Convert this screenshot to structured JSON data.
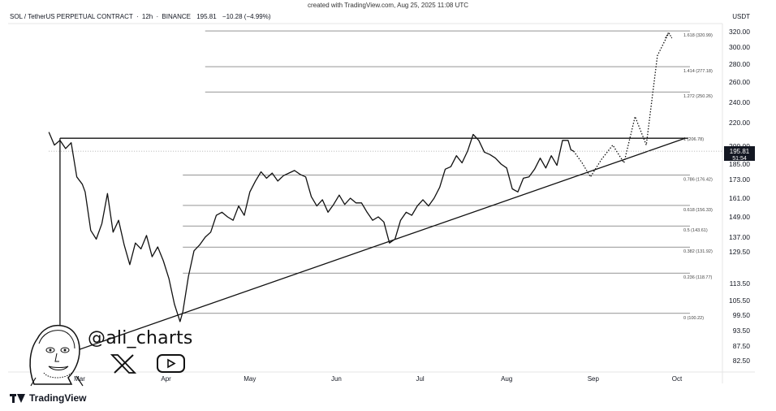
{
  "header": {
    "created": "created with TradingView.com, Aug 25, 2025 11:08 UTC",
    "symbol": "SOL / TetherUS PERPETUAL CONTRACT",
    "interval": "12h",
    "exchange": "BINANCE",
    "last": "195.81",
    "change": "−10.28 (−4.99%)",
    "currency": "USDT"
  },
  "price_badge": {
    "price": "195.81",
    "countdown": "51:54"
  },
  "branding": {
    "handle": "@ali_charts",
    "platform": "TradingView"
  },
  "colors": {
    "line": "#111111",
    "grid": "#d9d9d9",
    "badge": "#131722",
    "badge_text": "#ffffff"
  },
  "chart_data": {
    "type": "line",
    "title": "",
    "xlabel": "",
    "ylabel": "",
    "ylim": [
      80,
      325
    ],
    "grid": false,
    "y_tick_labels": [
      "320.00",
      "300.00",
      "280.00",
      "260.00",
      "240.00",
      "220.00",
      "200.00",
      "185.00",
      "173.00",
      "161.00",
      "149.00",
      "137.00",
      "129.50",
      "113.50",
      "105.50",
      "99.50",
      "93.50",
      "87.50",
      "82.50"
    ],
    "y_tick_values": [
      320,
      300,
      280,
      260,
      240,
      220,
      200,
      185,
      173,
      161,
      149,
      137,
      129.5,
      113.5,
      105.5,
      99.5,
      93.5,
      87.5,
      82.5
    ],
    "x_tick_labels": [
      "Mar",
      "Apr",
      "May",
      "Jun",
      "Jul",
      "Aug",
      "Sep",
      "Oct"
    ],
    "x_tick_dates": [
      "2025-03-01",
      "2025-04-01",
      "2025-05-01",
      "2025-06-01",
      "2025-07-01",
      "2025-08-01",
      "2025-09-01",
      "2025-10-01"
    ],
    "fib_levels": [
      {
        "label": "1.618 (320.99)",
        "value": 320.99
      },
      {
        "label": "1.414 (277.18)",
        "value": 277.18
      },
      {
        "label": "1.272 (250.26)",
        "value": 250.26
      },
      {
        "label": "0.786 (176.42)",
        "value": 176.42
      },
      {
        "label": "0.618 (156.33)",
        "value": 156.33
      },
      {
        "label": "0.5 (143.61)",
        "value": 143.61
      },
      {
        "label": "0.382 (131.92)",
        "value": 131.92
      },
      {
        "label": "0.236 (118.77)",
        "value": 118.77
      },
      {
        "label": "0 (100.22)",
        "value": 100.22
      }
    ],
    "resistance": {
      "label": "1 (206.78)",
      "value": 206.78
    },
    "last_price": 195.81,
    "series": [
      {
        "x": [
          "2025-02-18",
          "2025-02-20",
          "2025-02-22",
          "2025-02-24",
          "2025-02-26",
          "2025-02-28",
          "2025-03-02",
          "2025-03-03",
          "2025-03-05",
          "2025-03-07",
          "2025-03-09",
          "2025-03-11",
          "2025-03-13",
          "2025-03-15",
          "2025-03-17",
          "2025-03-19",
          "2025-03-21",
          "2025-03-23",
          "2025-03-25",
          "2025-03-27",
          "2025-03-29",
          "2025-03-31",
          "2025-04-02",
          "2025-04-04",
          "2025-04-06",
          "2025-04-07",
          "2025-04-09",
          "2025-04-11",
          "2025-04-13",
          "2025-04-15",
          "2025-04-17",
          "2025-04-19",
          "2025-04-21",
          "2025-04-23",
          "2025-04-25",
          "2025-04-27",
          "2025-04-29",
          "2025-05-01",
          "2025-05-03",
          "2025-05-05",
          "2025-05-07",
          "2025-05-09",
          "2025-05-11",
          "2025-05-13",
          "2025-05-15",
          "2025-05-17",
          "2025-05-19",
          "2025-05-21",
          "2025-05-23",
          "2025-05-25",
          "2025-05-27",
          "2025-05-29",
          "2025-05-31",
          "2025-06-02",
          "2025-06-04",
          "2025-06-06",
          "2025-06-08",
          "2025-06-10",
          "2025-06-12",
          "2025-06-14",
          "2025-06-16",
          "2025-06-18",
          "2025-06-20",
          "2025-06-22",
          "2025-06-24",
          "2025-06-26",
          "2025-06-28",
          "2025-06-30",
          "2025-07-02",
          "2025-07-04",
          "2025-07-06",
          "2025-07-08",
          "2025-07-10",
          "2025-07-12",
          "2025-07-14",
          "2025-07-16",
          "2025-07-18",
          "2025-07-20",
          "2025-07-22",
          "2025-07-24",
          "2025-07-26",
          "2025-07-28",
          "2025-07-30",
          "2025-08-01",
          "2025-08-03",
          "2025-08-05",
          "2025-08-07",
          "2025-08-09",
          "2025-08-11",
          "2025-08-13",
          "2025-08-15",
          "2025-08-17",
          "2025-08-19",
          "2025-08-21",
          "2025-08-23",
          "2025-08-24",
          "2025-08-25"
        ],
        "y": [
          212,
          201,
          205,
          198,
          203,
          175,
          170,
          165,
          141,
          136,
          145,
          164,
          140,
          147,
          133,
          123,
          134,
          131,
          138,
          127,
          132,
          125,
          116,
          104,
          97,
          101,
          117,
          130,
          133,
          137,
          140,
          150,
          152,
          149,
          147,
          156,
          150,
          165,
          172,
          179,
          174,
          178,
          172,
          176,
          178,
          180,
          177,
          175,
          162,
          156,
          160,
          152,
          157,
          163,
          157,
          161,
          158,
          158,
          152,
          147,
          149,
          146,
          134,
          136,
          147,
          152,
          150,
          156,
          160,
          156,
          161,
          168,
          181,
          183,
          192,
          186,
          196,
          210,
          205,
          195,
          193,
          190,
          185,
          182,
          167,
          165,
          174,
          175,
          181,
          190,
          182,
          192,
          184,
          205,
          205,
          197,
          195.81
        ]
      }
    ],
    "projection": {
      "x": [
        "2025-08-25",
        "2025-08-28",
        "2025-08-31",
        "2025-09-04",
        "2025-09-08",
        "2025-09-12",
        "2025-09-16",
        "2025-09-20",
        "2025-09-24",
        "2025-09-28"
      ],
      "y": [
        195.81,
        186,
        175,
        189,
        201,
        186,
        226,
        201,
        290,
        318
      ]
    },
    "support": {
      "x": [
        "2025-04-07",
        "2025-08-21",
        "2025-10-04"
      ],
      "y": [
        100.22,
        166,
        206.78
      ]
    }
  }
}
